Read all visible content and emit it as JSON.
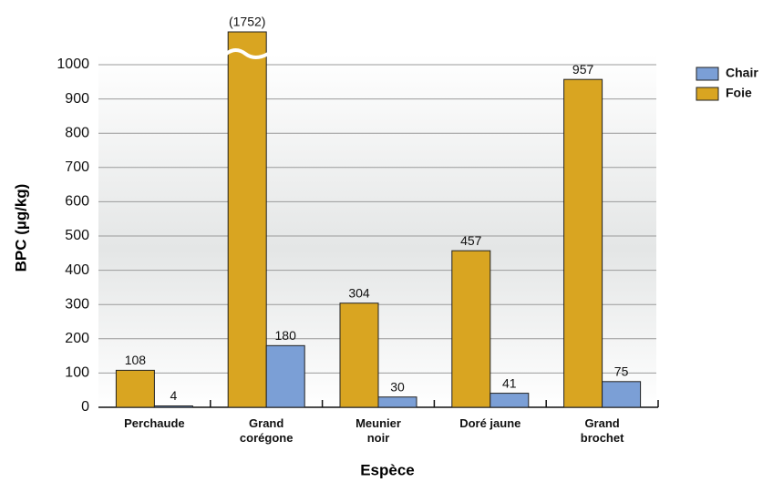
{
  "chart_data": {
    "type": "bar",
    "x_label": "Espèce",
    "y_label": "BPC (µg/kg)",
    "categories": [
      "Perchaude",
      "Grand corégone",
      "Meunier noir",
      "Doré jaune",
      "Grand brochet"
    ],
    "series": [
      {
        "name": "Chair",
        "color": "#7b9fd6",
        "values": [
          4,
          180,
          30,
          41,
          75
        ]
      },
      {
        "name": "Foie",
        "color": "#d9a521",
        "values": [
          108,
          1752,
          304,
          457,
          957
        ],
        "value_labels": [
          "108",
          "(1752)",
          "304",
          "457",
          "957"
        ]
      }
    ],
    "ylim": [
      0,
      1000
    ],
    "yticks": [
      0,
      100,
      200,
      300,
      400,
      500,
      600,
      700,
      800,
      900,
      1000
    ],
    "grid": true,
    "legend": "top-right"
  }
}
